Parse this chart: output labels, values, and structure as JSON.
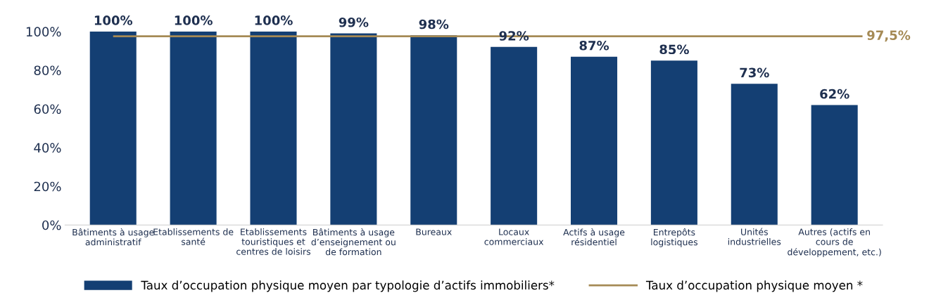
{
  "chart_data": {
    "type": "bar",
    "categories": [
      "Bâtiments à usage\nadministratif",
      "Etablissements de\nsanté",
      "Etablissements\ntouristiques et\ncentres de loisirs",
      "Bâtiments à usage\nd’enseignement ou\nde formation",
      "Bureaux",
      "Locaux\ncommerciaux",
      "Actifs à usage\nrésidentiel",
      "Entrepôts\nlogistiques",
      "Unités\nindustrielles",
      "Autres (actifs en\ncours de\ndéveloppement, etc.)"
    ],
    "series": [
      {
        "name": "Taux d’occupation physique moyen par typologie d’actifs immobiliers*",
        "color": "#143f73",
        "values": [
          100,
          100,
          100,
          99,
          98,
          92,
          87,
          85,
          73,
          62
        ]
      }
    ],
    "value_labels": [
      "100%",
      "100%",
      "100%",
      "99%",
      "98%",
      "92%",
      "87%",
      "85%",
      "73%",
      "62%"
    ],
    "ylim": [
      0,
      100
    ],
    "yticks": [
      {
        "value": 0,
        "label": "0%"
      },
      {
        "value": 20,
        "label": "20%"
      },
      {
        "value": 40,
        "label": "40%"
      },
      {
        "value": 60,
        "label": "60%"
      },
      {
        "value": 80,
        "label": "80%"
      },
      {
        "value": 100,
        "label": "100%"
      }
    ],
    "ref_lines": [
      {
        "axis": "y",
        "value": 97.5,
        "label": "Taux d’occupation physique moyen *",
        "color": "#a58a55",
        "line_style": "solid"
      }
    ],
    "annotations": [
      "97,5%"
    ],
    "grid": false,
    "legend": "bottom"
  }
}
